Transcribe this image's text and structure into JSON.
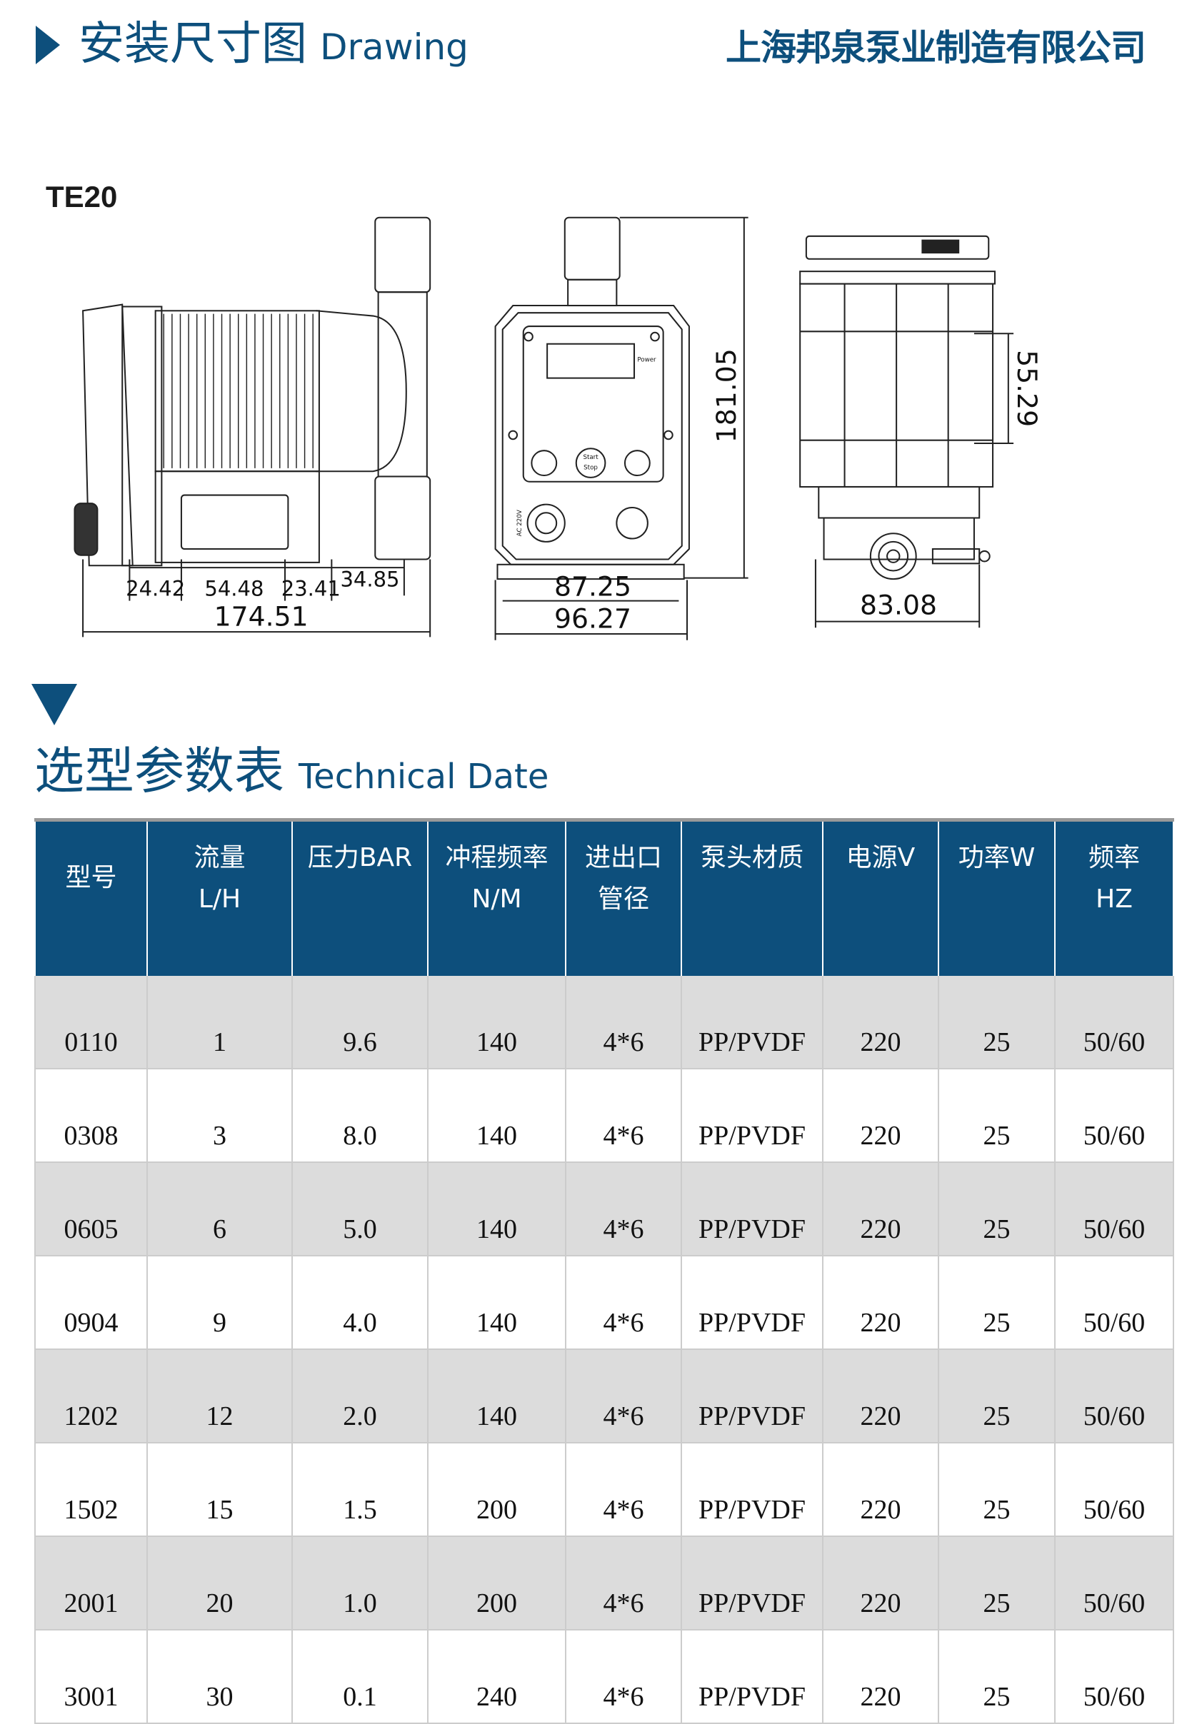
{
  "header": {
    "title_cn": "安装尺寸图",
    "title_en": "Drawing",
    "company": "上海邦泉泵业制造有限公司"
  },
  "drawing": {
    "model": "TE20",
    "side_dims": [
      "24.42",
      "54.48",
      "23.41",
      "34.85",
      "174.51"
    ],
    "front_dims": [
      "87.25",
      "96.27",
      "181.05"
    ],
    "top_dims": [
      "55.29",
      "83.08"
    ],
    "panel_labels": {
      "power": "Power",
      "start": "Start",
      "stop": "Stop",
      "voltage": "AC 220V"
    }
  },
  "table_section": {
    "title_cn": "选型参数表",
    "title_en": "Technical Date"
  },
  "colors": {
    "brand": "#0d4f7c",
    "row_alt": "#dcdcdc"
  },
  "table": {
    "headers": [
      [
        "型号"
      ],
      [
        "流量",
        "L/H"
      ],
      [
        "压力BAR"
      ],
      [
        "冲程频率",
        "N/M"
      ],
      [
        "进出口",
        "管径"
      ],
      [
        "泵头材质"
      ],
      [
        "电源V"
      ],
      [
        "功率W"
      ],
      [
        "频率",
        "HZ"
      ]
    ],
    "rows": [
      [
        "0110",
        "1",
        "9.6",
        "140",
        "4*6",
        "PP/PVDF",
        "220",
        "25",
        "50/60"
      ],
      [
        "0308",
        "3",
        "8.0",
        "140",
        "4*6",
        "PP/PVDF",
        "220",
        "25",
        "50/60"
      ],
      [
        "0605",
        "6",
        "5.0",
        "140",
        "4*6",
        "PP/PVDF",
        "220",
        "25",
        "50/60"
      ],
      [
        "0904",
        "9",
        "4.0",
        "140",
        "4*6",
        "PP/PVDF",
        "220",
        "25",
        "50/60"
      ],
      [
        "1202",
        "12",
        "2.0",
        "140",
        "4*6",
        "PP/PVDF",
        "220",
        "25",
        "50/60"
      ],
      [
        "1502",
        "15",
        "1.5",
        "200",
        "4*6",
        "PP/PVDF",
        "220",
        "25",
        "50/60"
      ],
      [
        "2001",
        "20",
        "1.0",
        "200",
        "4*6",
        "PP/PVDF",
        "220",
        "25",
        "50/60"
      ],
      [
        "3001",
        "30",
        "0.1",
        "240",
        "4*6",
        "PP/PVDF",
        "220",
        "25",
        "50/60"
      ]
    ]
  }
}
